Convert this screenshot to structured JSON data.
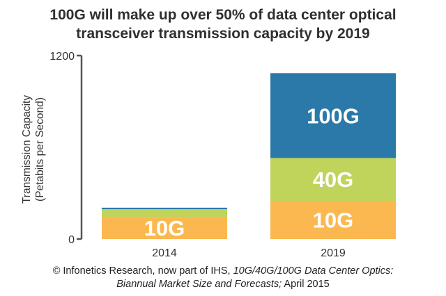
{
  "chart_data": {
    "type": "bar",
    "stacked": true,
    "title_line1": "100G will make up over 50% of data center optical",
    "title_line2": "transceiver transmission capacity by 2019",
    "ylabel_line1": "Transmission Capacity",
    "ylabel_line2": "(Petabits per Second)",
    "categories": [
      "2014",
      "2019"
    ],
    "ylim": [
      0,
      1200
    ],
    "ytick_labels": [
      "0",
      "1200"
    ],
    "series": [
      {
        "name": "10G",
        "color": "#fbb850",
        "values": [
          145,
          250
        ]
      },
      {
        "name": "40G",
        "color": "#c0d35a",
        "values": [
          50,
          280
        ]
      },
      {
        "name": "100G",
        "color": "#2b79a9",
        "values": [
          10,
          555
        ]
      }
    ]
  },
  "footer": {
    "part1": "© Infonetics Research, now part of IHS, ",
    "part2_italic": "10G/40G/100G Data Center Optics:",
    "part3_italic": "Biannual Market Size and Forecasts;",
    "part4": " April 2015"
  }
}
